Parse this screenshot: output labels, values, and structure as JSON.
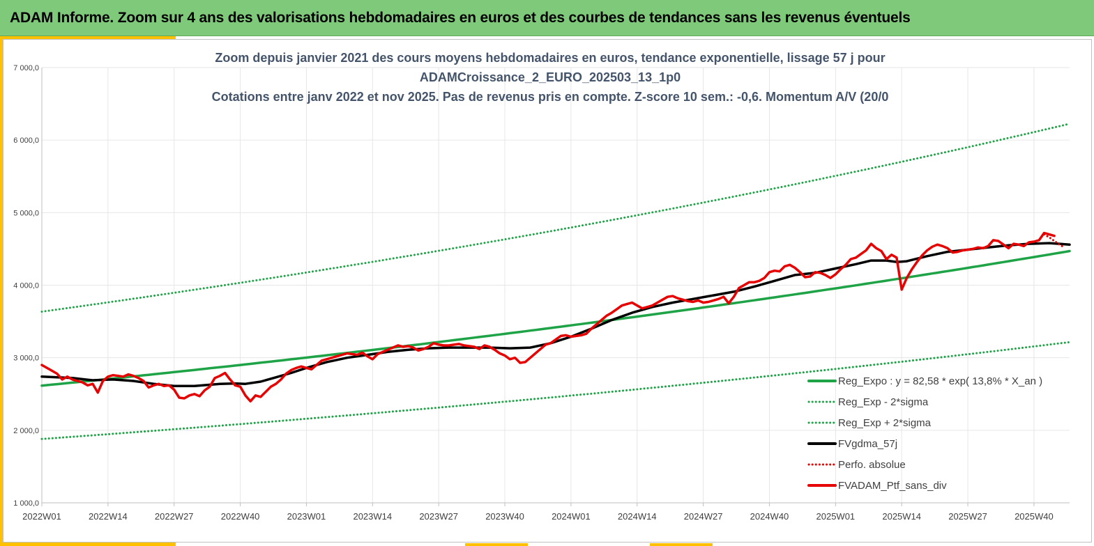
{
  "header": {
    "title": "ADAM Informe. Zoom sur 4 ans des valorisations hebdomadaires en euros et des courbes de tendances sans les revenus éventuels"
  },
  "colors": {
    "header_bg": "#7fc97a",
    "accent": "#ffc000",
    "green": "#1fa347",
    "black": "#000000",
    "red": "#e60000",
    "grid": "#e6e6e6"
  },
  "chart_data": {
    "type": "line",
    "title": [
      "Zoom depuis janvier 2021 des cours moyens hebdomadaires  en euros, tendance exponentielle, lissage 57 j pour",
      "ADAMCroissance_2_EURO_202503_13_1p0",
      "Cotations  entre janv 2022 et nov 2025. Pas de revenus pris en compte. Z-score 10 sem.: -0,6. Momentum A/V (20/0"
    ],
    "xlabel": "",
    "ylabel": "",
    "ylim": [
      1000,
      7000
    ],
    "xlim": [
      0,
      202
    ],
    "yticks": [
      1000,
      2000,
      3000,
      4000,
      5000,
      6000,
      7000
    ],
    "ytick_labels": [
      "1 000,0",
      "2 000,0",
      "3 000,0",
      "4 000,0",
      "5 000,0",
      "6 000,0",
      "7 000,0"
    ],
    "xtick_positions": [
      0,
      13,
      26,
      39,
      52,
      65,
      78,
      91,
      104,
      117,
      130,
      143,
      156,
      169,
      182,
      195
    ],
    "xtick_labels": [
      "2022W01",
      "2022W14",
      "2022W27",
      "2022W40",
      "2023W01",
      "2023W14",
      "2023W27",
      "2023W40",
      "2024W01",
      "2024W14",
      "2024W27",
      "2024W40",
      "2025W01",
      "2025W14",
      "2025W27",
      "2025W40"
    ],
    "grid": true,
    "legend_position": "bottom-right",
    "series": [
      {
        "name": "Reg_Expo : y = 82,58 * exp( 13,8% *  X_an )",
        "style": "solid",
        "color": "#1fa347",
        "x": [
          0,
          202
        ],
        "y_start": 2615,
        "y_end": 4470,
        "kind": "exp"
      },
      {
        "name": "Reg_Exp - 2*sigma",
        "style": "dotted",
        "color": "#1fa347",
        "x": [
          0,
          202
        ],
        "y_start": 1880,
        "y_end": 3215,
        "kind": "exp"
      },
      {
        "name": "Reg_Exp + 2*sigma",
        "style": "dotted",
        "color": "#1fa347",
        "x": [
          0,
          202
        ],
        "y_start": 3635,
        "y_end": 6225,
        "kind": "exp"
      },
      {
        "name": "FVgdma_57j",
        "style": "solid",
        "color": "#000000",
        "points": [
          [
            0,
            2740
          ],
          [
            6,
            2720
          ],
          [
            10,
            2690
          ],
          [
            14,
            2700
          ],
          [
            18,
            2680
          ],
          [
            22,
            2640
          ],
          [
            26,
            2610
          ],
          [
            30,
            2610
          ],
          [
            35,
            2640
          ],
          [
            38,
            2645
          ],
          [
            40,
            2640
          ],
          [
            43,
            2670
          ],
          [
            46,
            2730
          ],
          [
            49,
            2790
          ],
          [
            52,
            2860
          ],
          [
            56,
            2940
          ],
          [
            60,
            3000
          ],
          [
            65,
            3050
          ],
          [
            68,
            3080
          ],
          [
            72,
            3110
          ],
          [
            76,
            3130
          ],
          [
            80,
            3140
          ],
          [
            84,
            3140
          ],
          [
            88,
            3140
          ],
          [
            92,
            3130
          ],
          [
            96,
            3140
          ],
          [
            100,
            3200
          ],
          [
            104,
            3290
          ],
          [
            108,
            3400
          ],
          [
            112,
            3520
          ],
          [
            116,
            3620
          ],
          [
            120,
            3700
          ],
          [
            124,
            3760
          ],
          [
            128,
            3810
          ],
          [
            132,
            3860
          ],
          [
            136,
            3910
          ],
          [
            140,
            3980
          ],
          [
            144,
            4060
          ],
          [
            148,
            4140
          ],
          [
            152,
            4170
          ],
          [
            156,
            4230
          ],
          [
            160,
            4290
          ],
          [
            163,
            4340
          ],
          [
            166,
            4340
          ],
          [
            168,
            4320
          ],
          [
            170,
            4330
          ],
          [
            174,
            4400
          ],
          [
            178,
            4460
          ],
          [
            182,
            4490
          ],
          [
            186,
            4520
          ],
          [
            190,
            4550
          ],
          [
            194,
            4570
          ],
          [
            198,
            4580
          ],
          [
            202,
            4560
          ]
        ]
      },
      {
        "name": "Perfo. absolue",
        "style": "dotted",
        "color": "#e60000",
        "points": [
          [
            197,
            4700
          ],
          [
            198,
            4660
          ],
          [
            199,
            4610
          ],
          [
            200,
            4560
          ],
          [
            201,
            4520
          ]
        ]
      },
      {
        "name": "FVADAM_Ptf_sans_div",
        "style": "solid",
        "color": "#e60000",
        "points": [
          [
            0,
            2900
          ],
          [
            2,
            2820
          ],
          [
            3,
            2780
          ],
          [
            4,
            2700
          ],
          [
            5,
            2740
          ],
          [
            6,
            2700
          ],
          [
            7,
            2680
          ],
          [
            8,
            2660
          ],
          [
            9,
            2620
          ],
          [
            10,
            2640
          ],
          [
            11,
            2520
          ],
          [
            12,
            2680
          ],
          [
            13,
            2740
          ],
          [
            14,
            2760
          ],
          [
            15,
            2750
          ],
          [
            16,
            2740
          ],
          [
            17,
            2770
          ],
          [
            18,
            2750
          ],
          [
            19,
            2720
          ],
          [
            20,
            2680
          ],
          [
            21,
            2590
          ],
          [
            22,
            2620
          ],
          [
            23,
            2640
          ],
          [
            24,
            2610
          ],
          [
            25,
            2620
          ],
          [
            26,
            2560
          ],
          [
            27,
            2450
          ],
          [
            28,
            2440
          ],
          [
            29,
            2480
          ],
          [
            30,
            2500
          ],
          [
            31,
            2470
          ],
          [
            32,
            2550
          ],
          [
            33,
            2600
          ],
          [
            34,
            2720
          ],
          [
            35,
            2750
          ],
          [
            36,
            2790
          ],
          [
            37,
            2700
          ],
          [
            38,
            2620
          ],
          [
            39,
            2600
          ],
          [
            40,
            2480
          ],
          [
            41,
            2400
          ],
          [
            42,
            2480
          ],
          [
            43,
            2460
          ],
          [
            44,
            2530
          ],
          [
            45,
            2600
          ],
          [
            46,
            2640
          ],
          [
            47,
            2700
          ],
          [
            48,
            2780
          ],
          [
            49,
            2830
          ],
          [
            50,
            2860
          ],
          [
            51,
            2880
          ],
          [
            52,
            2860
          ],
          [
            53,
            2840
          ],
          [
            54,
            2900
          ],
          [
            55,
            2960
          ],
          [
            56,
            2980
          ],
          [
            57,
            3000
          ],
          [
            58,
            3020
          ],
          [
            59,
            3040
          ],
          [
            60,
            3060
          ],
          [
            61,
            3050
          ],
          [
            62,
            3040
          ],
          [
            63,
            3070
          ],
          [
            64,
            3020
          ],
          [
            65,
            2980
          ],
          [
            66,
            3050
          ],
          [
            67,
            3080
          ],
          [
            68,
            3110
          ],
          [
            69,
            3140
          ],
          [
            70,
            3170
          ],
          [
            71,
            3150
          ],
          [
            72,
            3160
          ],
          [
            73,
            3140
          ],
          [
            74,
            3100
          ],
          [
            75,
            3120
          ],
          [
            76,
            3150
          ],
          [
            77,
            3200
          ],
          [
            78,
            3180
          ],
          [
            79,
            3170
          ],
          [
            80,
            3170
          ],
          [
            81,
            3180
          ],
          [
            82,
            3190
          ],
          [
            83,
            3170
          ],
          [
            84,
            3160
          ],
          [
            85,
            3150
          ],
          [
            86,
            3120
          ],
          [
            87,
            3170
          ],
          [
            88,
            3150
          ],
          [
            89,
            3110
          ],
          [
            90,
            3060
          ],
          [
            91,
            3030
          ],
          [
            92,
            2980
          ],
          [
            93,
            3000
          ],
          [
            94,
            2930
          ],
          [
            95,
            2940
          ],
          [
            96,
            3000
          ],
          [
            97,
            3060
          ],
          [
            98,
            3120
          ],
          [
            99,
            3180
          ],
          [
            100,
            3200
          ],
          [
            101,
            3250
          ],
          [
            102,
            3300
          ],
          [
            103,
            3310
          ],
          [
            104,
            3290
          ],
          [
            105,
            3300
          ],
          [
            106,
            3310
          ],
          [
            107,
            3330
          ],
          [
            108,
            3400
          ],
          [
            109,
            3460
          ],
          [
            110,
            3520
          ],
          [
            111,
            3580
          ],
          [
            112,
            3620
          ],
          [
            113,
            3670
          ],
          [
            114,
            3720
          ],
          [
            115,
            3740
          ],
          [
            116,
            3760
          ],
          [
            117,
            3720
          ],
          [
            118,
            3680
          ],
          [
            119,
            3700
          ],
          [
            120,
            3720
          ],
          [
            121,
            3760
          ],
          [
            122,
            3800
          ],
          [
            123,
            3840
          ],
          [
            124,
            3850
          ],
          [
            125,
            3820
          ],
          [
            126,
            3800
          ],
          [
            127,
            3780
          ],
          [
            128,
            3770
          ],
          [
            129,
            3790
          ],
          [
            130,
            3760
          ],
          [
            131,
            3770
          ],
          [
            132,
            3790
          ],
          [
            133,
            3810
          ],
          [
            134,
            3840
          ],
          [
            135,
            3750
          ],
          [
            136,
            3840
          ],
          [
            137,
            3960
          ],
          [
            138,
            4000
          ],
          [
            139,
            4040
          ],
          [
            140,
            4040
          ],
          [
            141,
            4060
          ],
          [
            142,
            4100
          ],
          [
            143,
            4180
          ],
          [
            144,
            4200
          ],
          [
            145,
            4190
          ],
          [
            146,
            4260
          ],
          [
            147,
            4280
          ],
          [
            148,
            4240
          ],
          [
            149,
            4180
          ],
          [
            150,
            4110
          ],
          [
            151,
            4120
          ],
          [
            152,
            4180
          ],
          [
            153,
            4170
          ],
          [
            154,
            4140
          ],
          [
            155,
            4100
          ],
          [
            156,
            4150
          ],
          [
            157,
            4220
          ],
          [
            158,
            4280
          ],
          [
            159,
            4360
          ],
          [
            160,
            4380
          ],
          [
            161,
            4430
          ],
          [
            162,
            4480
          ],
          [
            163,
            4570
          ],
          [
            164,
            4510
          ],
          [
            165,
            4470
          ],
          [
            166,
            4360
          ],
          [
            167,
            4420
          ],
          [
            168,
            4380
          ],
          [
            169,
            3940
          ],
          [
            170,
            4100
          ],
          [
            171,
            4220
          ],
          [
            172,
            4320
          ],
          [
            173,
            4410
          ],
          [
            174,
            4480
          ],
          [
            175,
            4530
          ],
          [
            176,
            4560
          ],
          [
            177,
            4540
          ],
          [
            178,
            4510
          ],
          [
            179,
            4450
          ],
          [
            180,
            4460
          ],
          [
            181,
            4480
          ],
          [
            182,
            4490
          ],
          [
            183,
            4500
          ],
          [
            184,
            4520
          ],
          [
            185,
            4510
          ],
          [
            186,
            4540
          ],
          [
            187,
            4620
          ],
          [
            188,
            4610
          ],
          [
            189,
            4560
          ],
          [
            190,
            4510
          ],
          [
            191,
            4570
          ],
          [
            192,
            4560
          ],
          [
            193,
            4540
          ],
          [
            194,
            4590
          ],
          [
            195,
            4600
          ],
          [
            196,
            4620
          ],
          [
            197,
            4720
          ],
          [
            198,
            4700
          ],
          [
            199,
            4680
          ]
        ]
      }
    ]
  }
}
